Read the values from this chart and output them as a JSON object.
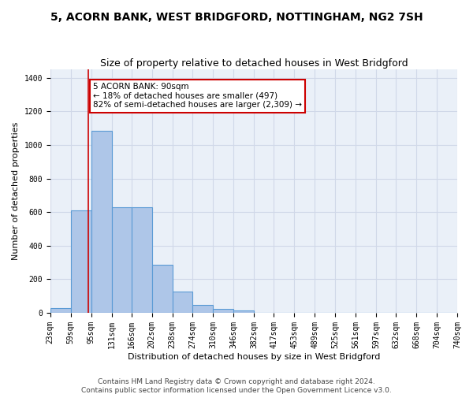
{
  "title": "5, ACORN BANK, WEST BRIDGFORD, NOTTINGHAM, NG2 7SH",
  "subtitle": "Size of property relative to detached houses in West Bridgford",
  "xlabel": "Distribution of detached houses by size in West Bridgford",
  "ylabel": "Number of detached properties",
  "footer_line1": "Contains HM Land Registry data © Crown copyright and database right 2024.",
  "footer_line2": "Contains public sector information licensed under the Open Government Licence v3.0.",
  "bins": [
    23,
    59,
    95,
    131,
    166,
    202,
    238,
    274,
    310,
    346,
    382,
    417,
    453,
    489,
    525,
    561,
    597,
    632,
    668,
    704,
    740
  ],
  "bar_heights": [
    30,
    610,
    1085,
    630,
    630,
    285,
    125,
    45,
    25,
    15,
    0,
    0,
    0,
    0,
    0,
    0,
    0,
    0,
    0,
    0
  ],
  "bar_color": "#aec6e8",
  "bar_edge_color": "#5b9bd5",
  "grid_color": "#d0d8e8",
  "subject_size": 90,
  "red_line_color": "#cc0000",
  "annotation_line1": "5 ACORN BANK: 90sqm",
  "annotation_line2": "← 18% of detached houses are smaller (497)",
  "annotation_line3": "82% of semi-detached houses are larger (2,309) →",
  "annotation_box_color": "#ffffff",
  "annotation_box_edge": "#cc0000",
  "ylim": [
    0,
    1450
  ],
  "yticks": [
    0,
    200,
    400,
    600,
    800,
    1000,
    1200,
    1400
  ],
  "title_fontsize": 10,
  "subtitle_fontsize": 9,
  "axis_label_fontsize": 8,
  "tick_fontsize": 7,
  "footer_fontsize": 6.5,
  "annotation_fontsize": 7.5,
  "bg_color": "#eaf0f8"
}
